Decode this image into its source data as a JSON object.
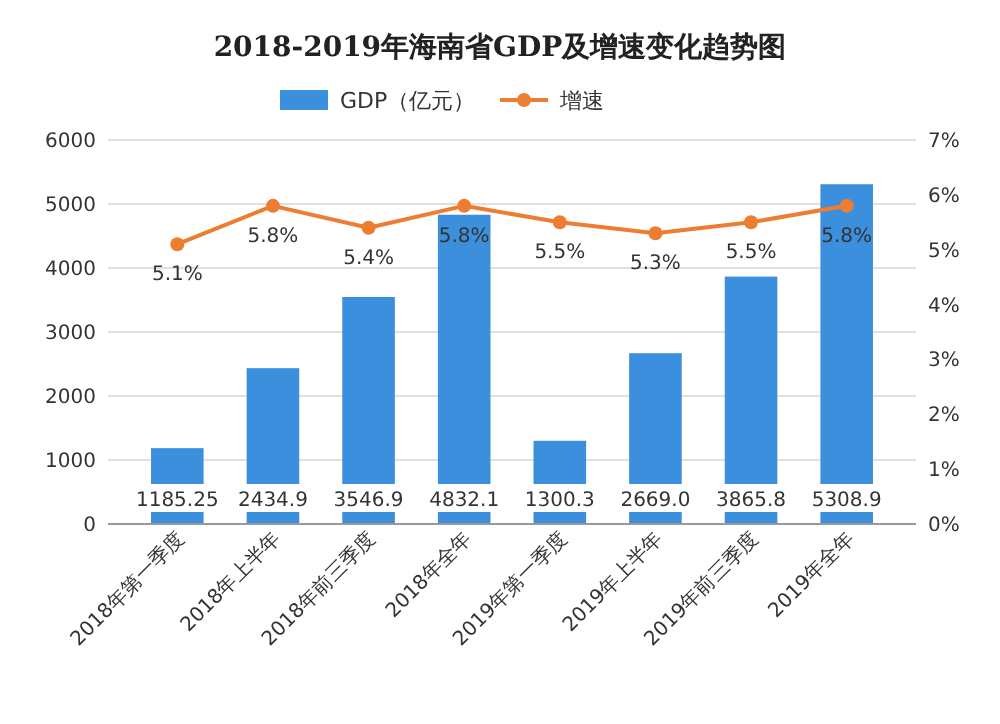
{
  "chart_data": {
    "type": "bar",
    "title": "2018-2019年海南省GDP及增速变化趋势图",
    "categories": [
      "2018年第一季度",
      "2018年上半年",
      "2018年前三季度",
      "2018年全年",
      "2019年第一季度",
      "2019年上半年",
      "2019年前三季度",
      "2019年全年"
    ],
    "series": [
      {
        "name": "GDP（亿元）",
        "color": "#3c8fdc",
        "values": [
          1185.25,
          2434.9,
          3546.9,
          4832.1,
          1300.3,
          2669.0,
          3865.8,
          5308.9
        ],
        "value_labels": [
          "1185.25",
          "2434.9",
          "3546.9",
          "4832.1",
          "1300.3",
          "2669.0",
          "3865.8",
          "5308.9"
        ]
      },
      {
        "name": "增速",
        "type": "line",
        "axis": "y2",
        "color": "#ed7d31",
        "values": [
          5.1,
          5.8,
          5.4,
          5.8,
          5.5,
          5.3,
          5.5,
          5.8
        ],
        "value_labels": [
          "5.1%",
          "5.8%",
          "5.4%",
          "5.8%",
          "5.5%",
          "5.3%",
          "5.5%",
          "5.8%"
        ]
      }
    ],
    "ylim": [
      0,
      6000
    ],
    "yticks": [
      0,
      1000,
      2000,
      3000,
      4000,
      5000,
      6000
    ],
    "y2lim": [
      0,
      7
    ],
    "y2ticks": [
      {
        "value": 0,
        "label": "0%"
      },
      {
        "value": 1,
        "label": "1%"
      },
      {
        "value": 2,
        "label": "2%"
      },
      {
        "value": 3,
        "label": "3%"
      },
      {
        "value": 4,
        "label": "4%"
      },
      {
        "value": 5,
        "label": "5%"
      },
      {
        "value": 6,
        "label": "6%"
      },
      {
        "value": 7,
        "label": "7%"
      }
    ],
    "grid": "y",
    "legend": "top",
    "marker": "circle",
    "line_style": "solid"
  }
}
